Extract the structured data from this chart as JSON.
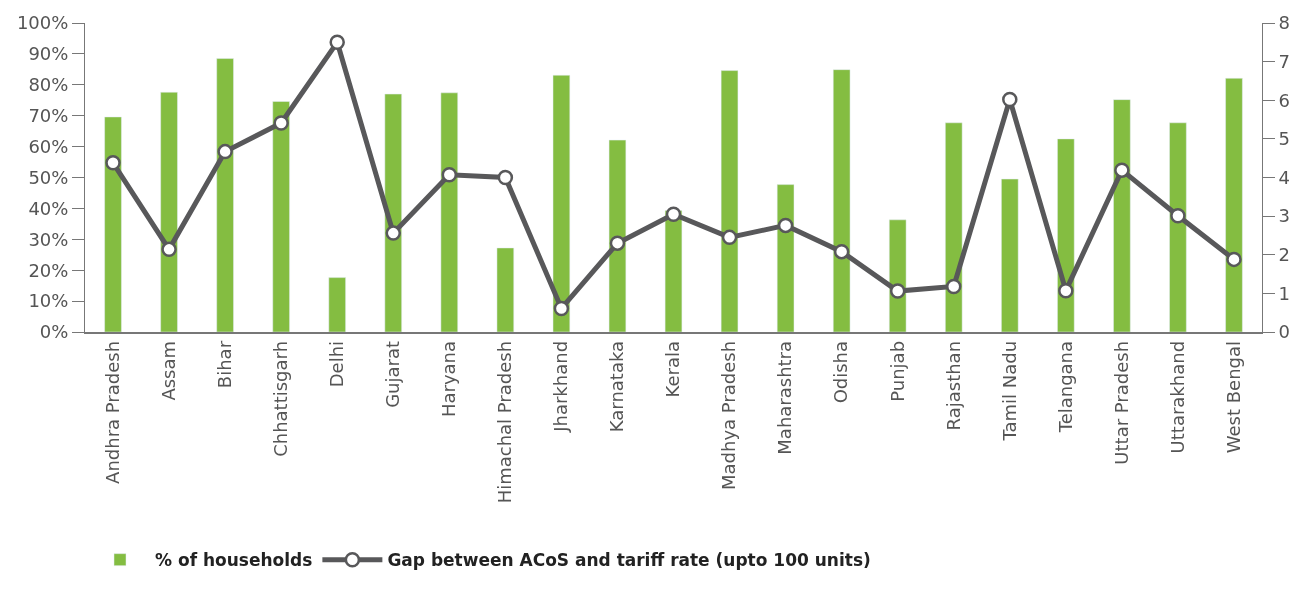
{
  "chart_data": {
    "type": "bar",
    "categories": [
      "Andhra Pradesh",
      "Assam",
      "Bihar",
      "Chhattisgarh",
      "Delhi",
      "Gujarat",
      "Haryana",
      "Himachal Pradesh",
      "Jharkhand",
      "Karnataka",
      "Kerala",
      "Madhya Pradesh",
      "Maharashtra",
      "Odisha",
      "Punjab",
      "Rajasthan",
      "Tamil Nadu",
      "Telangana",
      "Uttar Pradesh",
      "Uttarakhand",
      "West Bengal"
    ],
    "series": [
      {
        "name": "% of households",
        "color": "#84bd41",
        "values": [
          69.6,
          77.6,
          88.5,
          74.6,
          17.6,
          77,
          77.4,
          27.2,
          83.1,
          62.1,
          39.3,
          84.6,
          47.7,
          84.9,
          36.3,
          67.7,
          49.5,
          62.5,
          75.2,
          67.7,
          82.1
        ]
      },
      {
        "name": "Gap between ACoS and tariff rate (upto 100 units)",
        "type": "line",
        "axis": "y2",
        "color": "#58585a",
        "marker": "circle",
        "line_style": "solid",
        "values": [
          4.38,
          2.14,
          4.67,
          5.41,
          7.5,
          2.56,
          4.07,
          4.0,
          0.61,
          2.3,
          3.05,
          2.45,
          2.76,
          2.08,
          1.06,
          1.18,
          6.02,
          1.07,
          4.19,
          3.01,
          1.88
        ]
      }
    ],
    "ylim": [
      0,
      100
    ],
    "yticks": [
      {
        "value": 0,
        "label": "0%"
      },
      {
        "value": 10,
        "label": "10%"
      },
      {
        "value": 20,
        "label": "20%"
      },
      {
        "value": 30,
        "label": "30%"
      },
      {
        "value": 40,
        "label": "40%"
      },
      {
        "value": 50,
        "label": "50%"
      },
      {
        "value": 60,
        "label": "60%"
      },
      {
        "value": 70,
        "label": "70%"
      },
      {
        "value": 80,
        "label": "80%"
      },
      {
        "value": 90,
        "label": "90%"
      },
      {
        "value": 100,
        "label": "100%"
      }
    ],
    "y2lim": [
      0,
      8
    ],
    "y2ticks": [
      0,
      1,
      2,
      3,
      4,
      5,
      6,
      7,
      8
    ],
    "legend": "bottom left"
  }
}
